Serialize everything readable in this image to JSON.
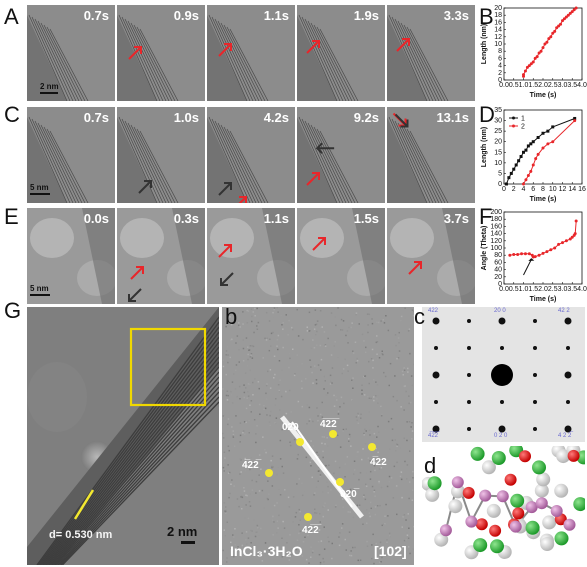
{
  "panels": {
    "A": {
      "label": "A",
      "times": [
        "0.7s",
        "0.9s",
        "1.1s",
        "1.9s",
        "3.3s"
      ],
      "scale": "2 nm"
    },
    "C": {
      "label": "C",
      "times": [
        "0.7s",
        "1.0s",
        "4.2s",
        "9.2s",
        "13.1s"
      ],
      "scale": "5 nm"
    },
    "E": {
      "label": "E",
      "times": [
        "0.0s",
        "0.3s",
        "1.1s",
        "1.5s",
        "3.7s"
      ],
      "scale": "5 nm"
    },
    "G": {
      "label": "G",
      "sub_a": "a",
      "sub_b": "b",
      "sub_c": "c",
      "sub_d": "d",
      "d_spacing": "d= 0.530 nm",
      "scale": "2 nm",
      "compound": "InCl₃·3H₂O",
      "zone": "[102]",
      "spots": [
        "4̅2̅2̅",
        "020",
        "4̅22",
        "4̅22̅",
        "020̅",
        "422",
        "42̅2̅"
      ],
      "sim_labels": [
        "4̅2̅2̅",
        "2̅0 0",
        "4̅2 2",
        "4̅2̅2̅",
        "0 2 0",
        "4 2 2̅"
      ]
    },
    "B": {
      "label": "B"
    },
    "D": {
      "label": "D"
    },
    "F": {
      "label": "F"
    }
  },
  "colors": {
    "arrow_red": "#e8262a",
    "arrow_dark": "#333333",
    "spot_yellow": "#f3e830",
    "box_yellow": "#f0d800",
    "series1": "#111111",
    "series2": "#e8262a"
  },
  "chart_data": [
    {
      "panel": "B",
      "type": "line",
      "xlabel": "Time (s)",
      "ylabel": "Length (nm)",
      "xlim": [
        0.0,
        4.0
      ],
      "ylim": [
        0,
        20
      ],
      "xticks": [
        "0.0",
        "0.5",
        "1.0",
        "1.5",
        "2.0",
        "2.5",
        "3.0",
        "3.5",
        "4.0"
      ],
      "yticks": [
        "0",
        "2",
        "4",
        "6",
        "8",
        "10",
        "12",
        "14",
        "16",
        "18",
        "20"
      ],
      "series": [
        {
          "values_x": [
            1.0,
            1.0,
            1.1,
            1.2,
            1.3,
            1.4,
            1.5,
            1.6,
            1.7,
            1.8,
            1.9,
            2.0,
            2.1,
            2.2,
            2.3,
            2.4,
            2.5,
            2.6,
            2.7,
            2.8,
            2.9,
            3.0,
            3.1,
            3.2,
            3.3,
            3.4,
            3.5,
            3.6,
            3.7
          ],
          "values_y": [
            1,
            1.5,
            2.5,
            3.5,
            4,
            4.5,
            5,
            6,
            6.5,
            7.5,
            8,
            9,
            10,
            10.5,
            11.5,
            12,
            13,
            13.5,
            14.5,
            15,
            15.5,
            16.5,
            17,
            17.5,
            18,
            18.5,
            19,
            19.5,
            20
          ]
        }
      ]
    },
    {
      "panel": "D",
      "type": "line",
      "xlabel": "Time (s)",
      "ylabel": "Length (nm)",
      "xlim": [
        0,
        16
      ],
      "ylim": [
        0,
        35
      ],
      "xticks": [
        "0",
        "2",
        "4",
        "6",
        "8",
        "10",
        "12",
        "14",
        "16"
      ],
      "yticks": [
        "0",
        "5",
        "10",
        "15",
        "20",
        "25",
        "30",
        "35"
      ],
      "legend": "top-left",
      "series": [
        {
          "name": "1",
          "x": [
            0.5,
            1,
            1.5,
            2,
            2.5,
            3,
            3.5,
            4,
            4.5,
            5,
            5.5,
            6,
            7,
            8,
            9,
            10,
            14.5
          ],
          "y": [
            0,
            3,
            5,
            7,
            9,
            11,
            13,
            15,
            16,
            18,
            19,
            20,
            22,
            24,
            25,
            27,
            31
          ]
        },
        {
          "name": "2",
          "x": [
            4,
            4.5,
            5,
            5.5,
            6,
            6.5,
            7,
            8,
            9,
            10,
            14.5
          ],
          "y": [
            0,
            2,
            4,
            6,
            9,
            12,
            14,
            17,
            19,
            20,
            30
          ]
        }
      ]
    },
    {
      "panel": "F",
      "type": "line",
      "xlabel": "Time (s)",
      "ylabel": "Angle (Theta)",
      "xlim": [
        0.0,
        4.0
      ],
      "ylim": [
        0,
        200
      ],
      "xticks": [
        "0.0",
        "0.5",
        "1.0",
        "1.5",
        "2.0",
        "2.5",
        "3.0",
        "3.5",
        "4.0"
      ],
      "yticks": [
        "0",
        "20",
        "40",
        "60",
        "80",
        "100",
        "120",
        "140",
        "160",
        "180",
        "200"
      ],
      "series": [
        {
          "x": [
            0.3,
            0.5,
            0.7,
            0.9,
            1.1,
            1.3,
            1.45,
            1.5,
            1.6,
            1.8,
            2.0,
            2.2,
            2.4,
            2.6,
            2.8,
            3.0,
            3.2,
            3.4,
            3.5,
            3.6,
            3.65,
            3.7
          ],
          "y": [
            80,
            82,
            82,
            84,
            84,
            84,
            80,
            75,
            76,
            80,
            85,
            90,
            95,
            100,
            110,
            115,
            120,
            125,
            130,
            135,
            140,
            175
          ]
        }
      ]
    }
  ]
}
